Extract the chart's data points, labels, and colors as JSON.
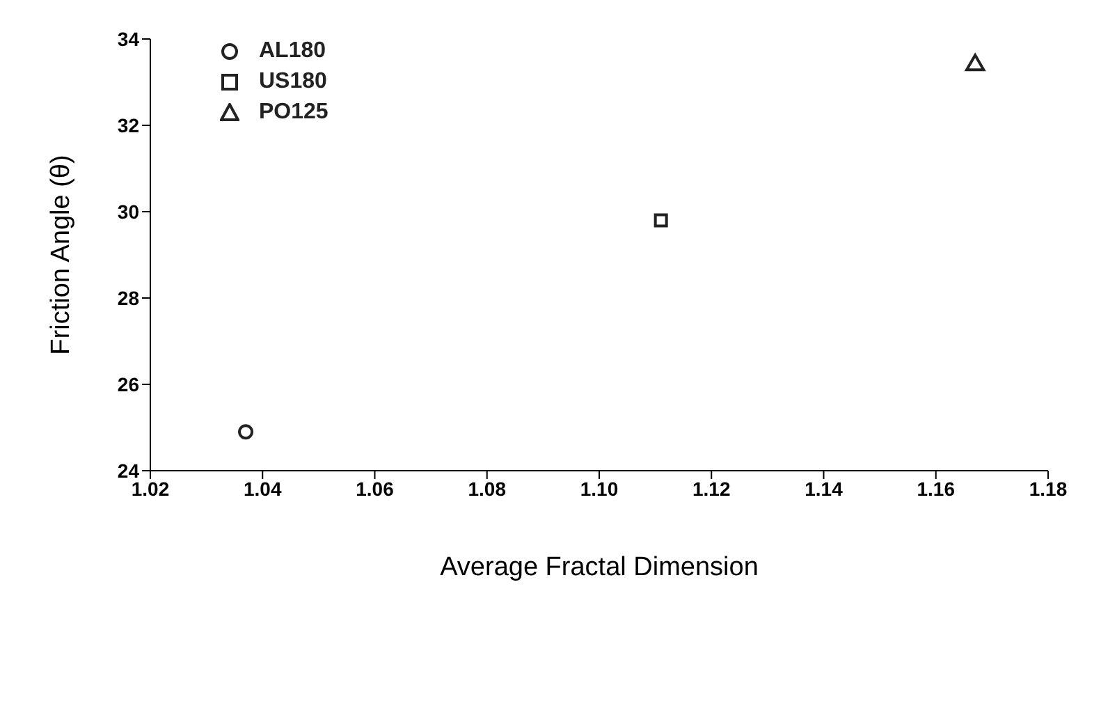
{
  "chart_data": {
    "type": "scatter",
    "xlabel": "Average Fractal Dimension",
    "ylabel": "Friction Angle (θ)",
    "xlim": [
      1.02,
      1.18
    ],
    "xticks": [
      1.02,
      1.04,
      1.06,
      1.08,
      {
        "value": 1.1,
        "label": "1.10"
      },
      1.12,
      1.14,
      1.16,
      1.18
    ],
    "ylim": [
      24,
      34
    ],
    "yticks": [
      24,
      26,
      28,
      30,
      32,
      34
    ],
    "grid": false,
    "legend": "top left",
    "series": [
      {
        "name": "AL180",
        "color": "#222222",
        "marker": "circle",
        "x": [
          1.037
        ],
        "values": [
          24.9
        ]
      },
      {
        "name": "US180",
        "color": "#222222",
        "marker": "square",
        "x": [
          1.111
        ],
        "values": [
          29.8
        ]
      },
      {
        "name": "PO125",
        "color": "#222222",
        "marker": "triangle",
        "x": [
          1.167
        ],
        "values": [
          33.4
        ]
      }
    ]
  }
}
